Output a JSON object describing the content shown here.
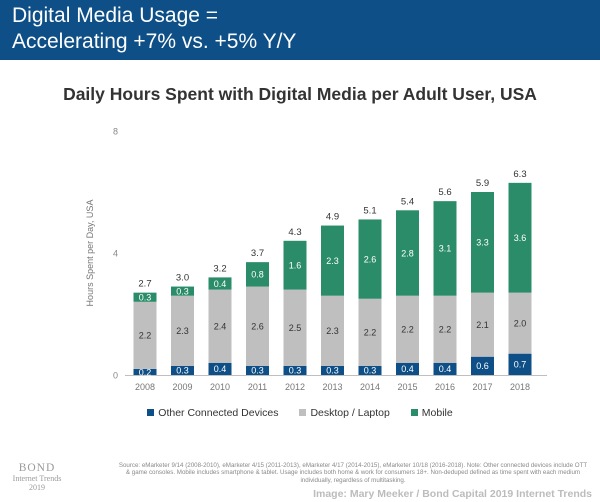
{
  "header": {
    "line1": "Digital Media Usage =",
    "line2": "Accelerating +7% vs. +5% Y/Y",
    "background_color": "#0d4f86"
  },
  "chart_data": {
    "type": "bar",
    "stacked": true,
    "title": "Daily Hours Spent with Digital Media per Adult User, USA",
    "ylabel": "Hours Spent per Day, USA",
    "xlabel": "",
    "ylim": [
      0,
      8
    ],
    "yticks": [
      0,
      4,
      8
    ],
    "categories": [
      "2008",
      "2009",
      "2010",
      "2011",
      "2012",
      "2013",
      "2014",
      "2015",
      "2016",
      "2017",
      "2018"
    ],
    "series": [
      {
        "name": "Other Connected Devices",
        "color": "#0d4f86",
        "values": [
          0.2,
          0.3,
          0.4,
          0.3,
          0.3,
          0.3,
          0.3,
          0.4,
          0.4,
          0.6,
          0.7
        ]
      },
      {
        "name": "Desktop / Laptop",
        "color": "#bfbfbf",
        "values": [
          2.2,
          2.3,
          2.4,
          2.6,
          2.5,
          2.3,
          2.2,
          2.2,
          2.2,
          2.1,
          2.0
        ]
      },
      {
        "name": "Mobile",
        "color": "#2a8c68",
        "values": [
          0.3,
          0.3,
          0.4,
          0.8,
          1.6,
          2.3,
          2.6,
          2.8,
          3.1,
          3.3,
          3.6
        ]
      }
    ],
    "totals": [
      2.7,
      3.0,
      3.2,
      3.7,
      4.3,
      4.9,
      5.1,
      5.4,
      5.6,
      5.9,
      6.3
    ],
    "legend": [
      "Other Connected Devices",
      "Desktop / Laptop",
      "Mobile"
    ],
    "legend_position": "bottom",
    "grid": false
  },
  "footer": {
    "source_note": "Source: eMarketer 9/14 (2008-2010), eMarketer 4/15 (2011-2013), eMarketer 4/17 (2014-2015), eMarketer 10/18 (2016-2018). Note: Other connected devices include OTT & game consoles. Mobile includes smartphone & tablet. Usage includes both home & work for consumers 18+. Non-deduped defined as time spent with each medium individually, regardless of multitasking.",
    "brand_name": "BOND",
    "brand_sub": "Internet Trends",
    "brand_year": "2019",
    "credit": "Image: Mary Meeker / Bond Capital 2019 Internet Trends"
  }
}
